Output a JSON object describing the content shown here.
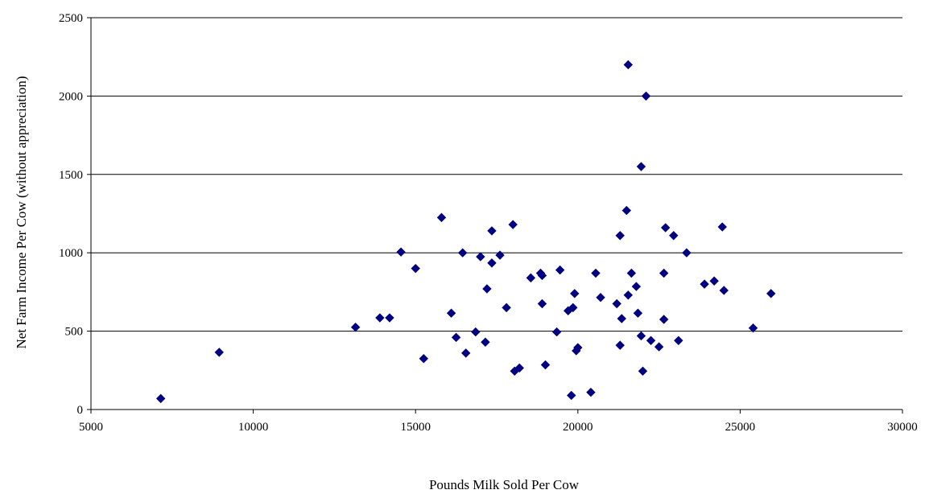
{
  "chart_data": {
    "type": "scatter",
    "title": "",
    "xlabel": "Pounds Milk Sold Per Cow",
    "ylabel": "Net Farm Income Per Cow (without appreciation)",
    "xlim": [
      5000,
      30000
    ],
    "ylim": [
      0,
      2500
    ],
    "x_ticks": [
      5000,
      10000,
      15000,
      20000,
      25000,
      30000
    ],
    "y_ticks": [
      0,
      500,
      1000,
      1500,
      2000,
      2500
    ],
    "grid": "horizontal",
    "legend": "none",
    "marker": "diamond",
    "marker_color": "#000080",
    "series": [
      {
        "points": [
          [
            7150,
            70
          ],
          [
            8950,
            365
          ],
          [
            13150,
            525
          ],
          [
            13900,
            585
          ],
          [
            14200,
            585
          ],
          [
            14550,
            1005
          ],
          [
            15000,
            900
          ],
          [
            15250,
            325
          ],
          [
            15800,
            1225
          ],
          [
            16100,
            615
          ],
          [
            16250,
            460
          ],
          [
            16450,
            1000
          ],
          [
            16550,
            360
          ],
          [
            16850,
            495
          ],
          [
            17000,
            975
          ],
          [
            17150,
            430
          ],
          [
            17200,
            770
          ],
          [
            17350,
            935
          ],
          [
            17350,
            1140
          ],
          [
            17600,
            985
          ],
          [
            17800,
            650
          ],
          [
            18000,
            1180
          ],
          [
            18050,
            245
          ],
          [
            18200,
            265
          ],
          [
            18550,
            840
          ],
          [
            18850,
            870
          ],
          [
            18900,
            855
          ],
          [
            18900,
            675
          ],
          [
            19000,
            285
          ],
          [
            19350,
            495
          ],
          [
            19450,
            890
          ],
          [
            19700,
            630
          ],
          [
            19800,
            90
          ],
          [
            19850,
            650
          ],
          [
            19900,
            740
          ],
          [
            19950,
            375
          ],
          [
            20000,
            395
          ],
          [
            20400,
            110
          ],
          [
            20550,
            870
          ],
          [
            20700,
            715
          ],
          [
            21200,
            675
          ],
          [
            21300,
            410
          ],
          [
            21300,
            1110
          ],
          [
            21350,
            580
          ],
          [
            21500,
            1270
          ],
          [
            21550,
            2200
          ],
          [
            21550,
            730
          ],
          [
            21650,
            870
          ],
          [
            21800,
            785
          ],
          [
            21850,
            615
          ],
          [
            21950,
            1550
          ],
          [
            21950,
            470
          ],
          [
            22000,
            245
          ],
          [
            22100,
            2000
          ],
          [
            22250,
            440
          ],
          [
            22500,
            400
          ],
          [
            22650,
            870
          ],
          [
            22650,
            575
          ],
          [
            22700,
            1160
          ],
          [
            22950,
            1110
          ],
          [
            23100,
            440
          ],
          [
            23350,
            1000
          ],
          [
            23900,
            800
          ],
          [
            24200,
            820
          ],
          [
            24450,
            1165
          ],
          [
            24500,
            760
          ],
          [
            25400,
            520
          ],
          [
            25950,
            740
          ]
        ]
      }
    ]
  }
}
